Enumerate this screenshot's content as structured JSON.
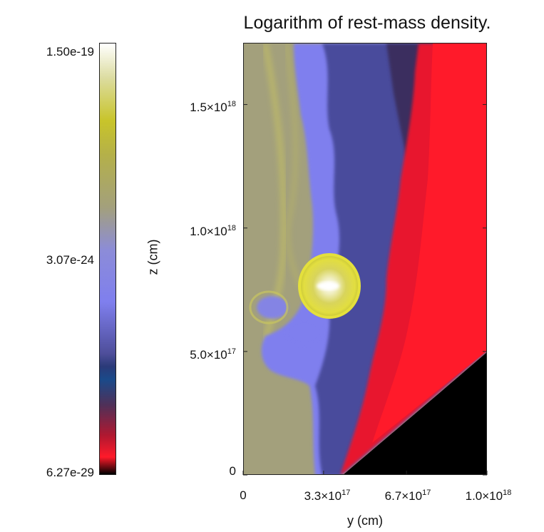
{
  "chart_data": {
    "type": "heatmap",
    "title": "Logarithm of rest-mass density.",
    "xlabel": "y (cm)",
    "ylabel": "z (cm)",
    "xlim": [
      0,
      1e+18
    ],
    "ylim": [
      0,
      1.75e+18
    ],
    "x_ticks": [
      {
        "value": 0,
        "mant": "0",
        "exp": ""
      },
      {
        "value": 3.3e+17,
        "mant": "3.3×10",
        "exp": "17"
      },
      {
        "value": 6.7e+17,
        "mant": "6.7×10",
        "exp": "17"
      },
      {
        "value": 1e+18,
        "mant": "1.0×10",
        "exp": "18"
      }
    ],
    "y_ticks": [
      {
        "value": 0,
        "mant": "0",
        "exp": ""
      },
      {
        "value": 5e+17,
        "mant": "5.0×10",
        "exp": "17"
      },
      {
        "value": 1e+18,
        "mant": "1.0×10",
        "exp": "18"
      },
      {
        "value": 1.5e+18,
        "mant": "1.5×10",
        "exp": "18"
      }
    ],
    "colorbar": {
      "labels": [
        "1.50e-19",
        "3.07e-24",
        "6.27e-29"
      ],
      "label_values": [
        1.5e-19,
        3.07e-24,
        6.27e-29
      ],
      "scale": "log",
      "colors": [
        "#ffffff",
        "#dcdca0",
        "#c8c42a",
        "#b4b04a",
        "#a3a07c",
        "#8c8cd8",
        "#7f7fee",
        "#4e4e9a",
        "#2a3a78",
        "#1a4a8a",
        "#503058",
        "#b01830",
        "#ff1a2a",
        "#000000"
      ]
    }
  }
}
